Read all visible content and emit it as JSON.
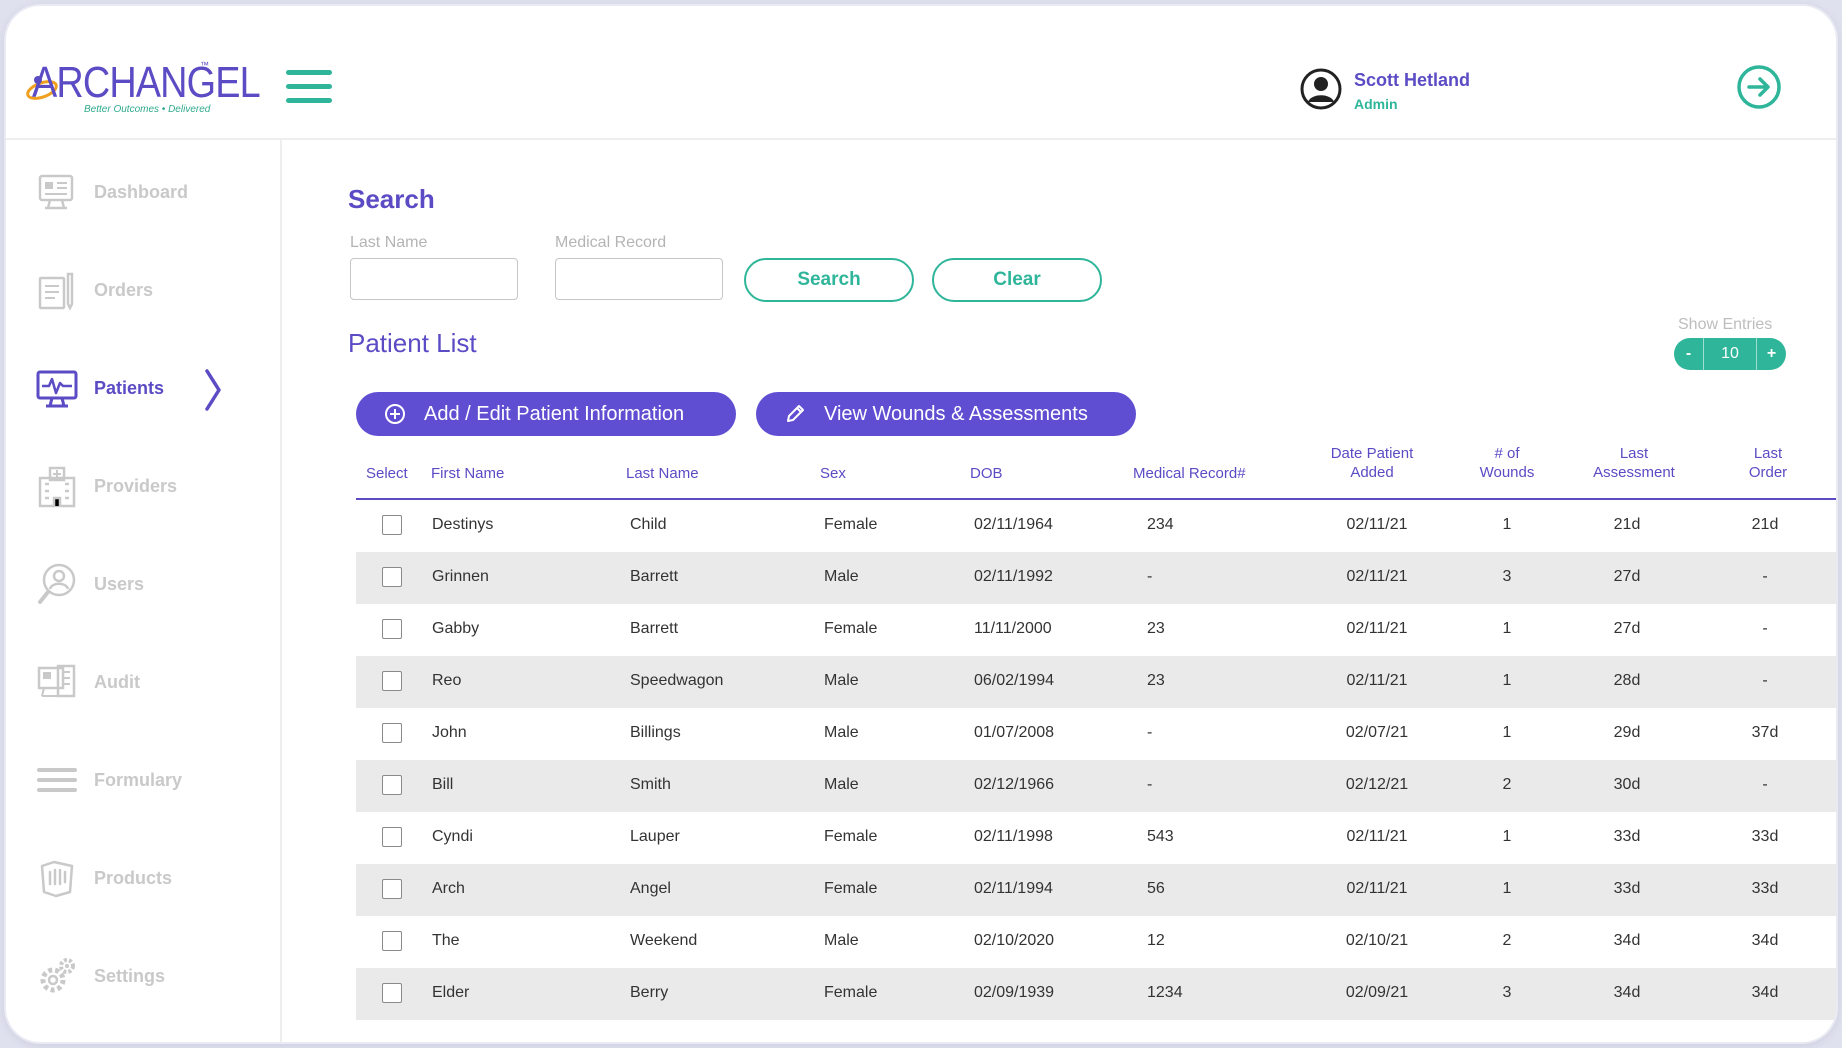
{
  "brand": {
    "name": "ARCHANGEL",
    "trademark": "™",
    "tagline": "Better Outcomes • Delivered"
  },
  "header": {
    "menu_icon": "hamburger-icon",
    "logout_icon": "arrow-right-circle-icon"
  },
  "user": {
    "name": "Scott Hetland",
    "role": "Admin",
    "avatar_icon": "user-circle-icon"
  },
  "sidebar": {
    "items": [
      {
        "label": "Dashboard",
        "icon": "dashboard-icon",
        "active": false
      },
      {
        "label": "Orders",
        "icon": "orders-icon",
        "active": false
      },
      {
        "label": "Patients",
        "icon": "patients-monitor-icon",
        "active": true
      },
      {
        "label": "Providers",
        "icon": "providers-building-icon",
        "active": false
      },
      {
        "label": "Users",
        "icon": "users-icon",
        "active": false
      },
      {
        "label": "Audit",
        "icon": "audit-icon",
        "active": false
      },
      {
        "label": "Formulary",
        "icon": "formulary-icon",
        "active": false
      },
      {
        "label": "Products",
        "icon": "products-icon",
        "active": false
      },
      {
        "label": "Settings",
        "icon": "settings-gear-icon",
        "active": false
      }
    ]
  },
  "search": {
    "title": "Search",
    "last_name_label": "Last Name",
    "last_name_value": "",
    "medical_record_label": "Medical Record",
    "medical_record_value": "",
    "search_button": "Search",
    "clear_button": "Clear"
  },
  "patient_list": {
    "title": "Patient List",
    "show_entries_label": "Show Entries",
    "entries_value": "10",
    "minus": "-",
    "plus": "+",
    "add_edit_button": "Add / Edit Patient Information",
    "view_wounds_button": "View Wounds & Assessments"
  },
  "table": {
    "headers": {
      "select": "Select",
      "first_name": "First Name",
      "last_name": "Last Name",
      "sex": "Sex",
      "dob": "DOB",
      "medical_record": "Medical Record#",
      "date_added_1": "Date Patient",
      "date_added_2": "Added",
      "wounds_1": "# of",
      "wounds_2": "Wounds",
      "last_assessment_1": "Last",
      "last_assessment_2": "Assessment",
      "last_order_1": "Last",
      "last_order_2": "Order"
    },
    "rows": [
      {
        "first": "Destinys",
        "last": "Child",
        "sex": "Female",
        "dob": "02/11/1964",
        "mrn": "234",
        "added": "02/11/21",
        "wounds": "1",
        "assessment": "21d",
        "order": "21d"
      },
      {
        "first": "Grinnen",
        "last": "Barrett",
        "sex": "Male",
        "dob": "02/11/1992",
        "mrn": "-",
        "added": "02/11/21",
        "wounds": "3",
        "assessment": "27d",
        "order": "-"
      },
      {
        "first": "Gabby",
        "last": "Barrett",
        "sex": "Female",
        "dob": "11/11/2000",
        "mrn": "23",
        "added": "02/11/21",
        "wounds": "1",
        "assessment": "27d",
        "order": "-"
      },
      {
        "first": "Reo",
        "last": "Speedwagon",
        "sex": "Male",
        "dob": "06/02/1994",
        "mrn": "23",
        "added": "02/11/21",
        "wounds": "1",
        "assessment": "28d",
        "order": "-"
      },
      {
        "first": "John",
        "last": "Billings",
        "sex": "Male",
        "dob": "01/07/2008",
        "mrn": "-",
        "added": "02/07/21",
        "wounds": "1",
        "assessment": "29d",
        "order": "37d"
      },
      {
        "first": "Bill",
        "last": "Smith",
        "sex": "Male",
        "dob": "02/12/1966",
        "mrn": "-",
        "added": "02/12/21",
        "wounds": "2",
        "assessment": "30d",
        "order": "-"
      },
      {
        "first": "Cyndi",
        "last": "Lauper",
        "sex": "Female",
        "dob": "02/11/1998",
        "mrn": "543",
        "added": "02/11/21",
        "wounds": "1",
        "assessment": "33d",
        "order": "33d"
      },
      {
        "first": "Arch",
        "last": "Angel",
        "sex": "Female",
        "dob": "02/11/1994",
        "mrn": "56",
        "added": "02/11/21",
        "wounds": "1",
        "assessment": "33d",
        "order": "33d"
      },
      {
        "first": "The",
        "last": "Weekend",
        "sex": "Male",
        "dob": "02/10/2020",
        "mrn": "12",
        "added": "02/10/21",
        "wounds": "2",
        "assessment": "34d",
        "order": "34d"
      },
      {
        "first": "Elder",
        "last": "Berry",
        "sex": "Female",
        "dob": "02/09/1939",
        "mrn": "1234",
        "added": "02/09/21",
        "wounds": "3",
        "assessment": "34d",
        "order": "34d"
      }
    ]
  },
  "colors": {
    "brand_purple": "#5b4bc4",
    "button_purple": "#5f4ed2",
    "accent_teal": "#2fb59a",
    "muted_gray": "#c9c9c9",
    "row_alt": "#eaeaea"
  }
}
